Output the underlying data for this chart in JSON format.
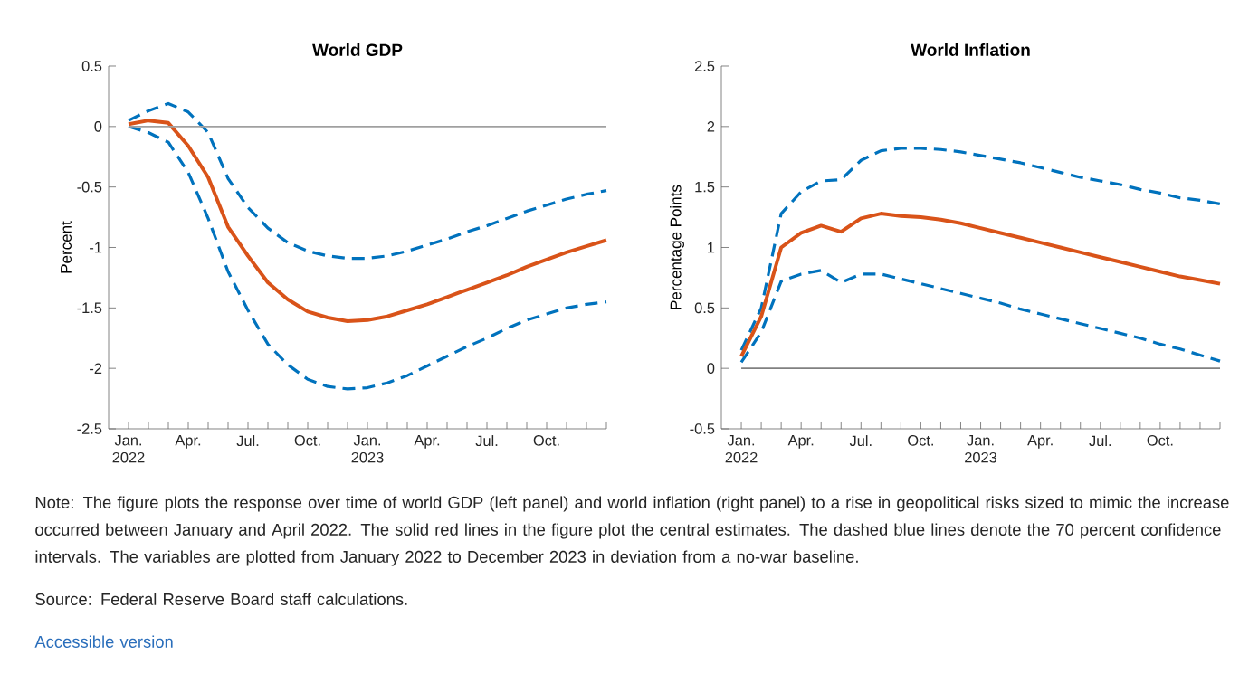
{
  "chart_data": [
    {
      "type": "line",
      "title": "World GDP",
      "ylabel": "Percent",
      "x": [
        "2022-01",
        "2022-02",
        "2022-03",
        "2022-04",
        "2022-05",
        "2022-06",
        "2022-07",
        "2022-08",
        "2022-09",
        "2022-10",
        "2022-11",
        "2022-12",
        "2023-01",
        "2023-02",
        "2023-03",
        "2023-04",
        "2023-05",
        "2023-06",
        "2023-07",
        "2023-08",
        "2023-09",
        "2023-10",
        "2023-11",
        "2023-12",
        "2024-01"
      ],
      "series": [
        {
          "color": "#0072bd",
          "line_style": "dashed",
          "values": [
            0.05,
            0.13,
            0.19,
            0.12,
            -0.05,
            -0.43,
            -0.67,
            -0.84,
            -0.96,
            -1.03,
            -1.07,
            -1.09,
            -1.09,
            -1.07,
            -1.03,
            -0.98,
            -0.93,
            -0.87,
            -0.82,
            -0.76,
            -0.7,
            -0.65,
            -0.6,
            -0.56,
            -0.53
          ]
        },
        {
          "color": "#0072bd",
          "line_style": "dashed",
          "values": [
            0.0,
            -0.05,
            -0.13,
            -0.38,
            -0.76,
            -1.2,
            -1.52,
            -1.8,
            -1.97,
            -2.09,
            -2.15,
            -2.17,
            -2.16,
            -2.12,
            -2.06,
            -1.98,
            -1.9,
            -1.82,
            -1.75,
            -1.67,
            -1.6,
            -1.55,
            -1.5,
            -1.47,
            -1.45
          ]
        },
        {
          "color": "#d95319",
          "line_style": "solid",
          "values": [
            0.02,
            0.05,
            0.03,
            -0.16,
            -0.42,
            -0.83,
            -1.07,
            -1.29,
            -1.43,
            -1.53,
            -1.58,
            -1.61,
            -1.6,
            -1.57,
            -1.52,
            -1.47,
            -1.41,
            -1.35,
            -1.29,
            -1.23,
            -1.16,
            -1.1,
            -1.04,
            -0.99,
            -0.94
          ]
        }
      ],
      "xlim": [
        "2021-12",
        "2024-01"
      ],
      "xticks": [
        {
          "value": "2022-01",
          "label": "Jan. 2022"
        },
        {
          "value": "2022-02",
          "label": null
        },
        {
          "value": "2022-03",
          "label": null
        },
        {
          "value": "2022-04",
          "label": "Apr."
        },
        {
          "value": "2022-05",
          "label": null
        },
        {
          "value": "2022-06",
          "label": null
        },
        {
          "value": "2022-07",
          "label": "Jul."
        },
        {
          "value": "2022-08",
          "label": null
        },
        {
          "value": "2022-09",
          "label": null
        },
        {
          "value": "2022-10",
          "label": "Oct."
        },
        {
          "value": "2022-11",
          "label": null
        },
        {
          "value": "2022-12",
          "label": null
        },
        {
          "value": "2023-01",
          "label": "Jan. 2023"
        },
        {
          "value": "2023-02",
          "label": null
        },
        {
          "value": "2023-03",
          "label": null
        },
        {
          "value": "2023-04",
          "label": "Apr."
        },
        {
          "value": "2023-05",
          "label": null
        },
        {
          "value": "2023-06",
          "label": null
        },
        {
          "value": "2023-07",
          "label": "Jul."
        },
        {
          "value": "2023-08",
          "label": null
        },
        {
          "value": "2023-09",
          "label": null
        },
        {
          "value": "2023-10",
          "label": "Oct."
        },
        {
          "value": "2023-11",
          "label": null
        },
        {
          "value": "2023-12",
          "label": null
        },
        {
          "value": "2024-01",
          "label": null
        }
      ],
      "ylim": [
        -2.5,
        0.5
      ],
      "yticks": [
        -2.5,
        -2,
        -1.5,
        -1,
        -0.5,
        0,
        0.5
      ],
      "ref_lines": [
        {
          "axis": "y",
          "value": 0,
          "color": "#a0a0a0"
        }
      ],
      "annotations": [
        "Note: The figure plots the response over time of world GDP (left panel) and world inflation (right panel) to a rise in geopolitical risks sized to mimic the increase occurred between January and April 2022. The solid red lines in the figure plot the central estimates. The dashed blue lines denote the 70 percent confidence intervals. The variables are plotted from January 2022 to December 2023 in deviation from a no-war baseline.",
        "Source: Federal Reserve Board staff calculations.",
        "Accessible version"
      ]
    },
    {
      "type": "line",
      "title": "World Inflation",
      "ylabel": "Percentage Points",
      "x": [
        "2022-01",
        "2022-02",
        "2022-03",
        "2022-04",
        "2022-05",
        "2022-06",
        "2022-07",
        "2022-08",
        "2022-09",
        "2022-10",
        "2022-11",
        "2022-12",
        "2023-01",
        "2023-02",
        "2023-03",
        "2023-04",
        "2023-05",
        "2023-06",
        "2023-07",
        "2023-08",
        "2023-09",
        "2023-10",
        "2023-11",
        "2023-12",
        "2024-01"
      ],
      "series": [
        {
          "color": "#0072bd",
          "line_style": "dashed",
          "values": [
            0.15,
            0.5,
            1.28,
            1.46,
            1.55,
            1.56,
            1.72,
            1.8,
            1.82,
            1.82,
            1.81,
            1.79,
            1.76,
            1.73,
            1.7,
            1.66,
            1.62,
            1.58,
            1.55,
            1.52,
            1.48,
            1.45,
            1.41,
            1.39,
            1.36
          ]
        },
        {
          "color": "#0072bd",
          "line_style": "dashed",
          "values": [
            0.05,
            0.3,
            0.72,
            0.78,
            0.81,
            0.71,
            0.78,
            0.78,
            0.74,
            0.7,
            0.66,
            0.62,
            0.58,
            0.54,
            0.49,
            0.45,
            0.41,
            0.37,
            0.33,
            0.29,
            0.25,
            0.2,
            0.16,
            0.11,
            0.06
          ]
        },
        {
          "color": "#d95319",
          "line_style": "solid",
          "values": [
            0.1,
            0.43,
            1.0,
            1.12,
            1.18,
            1.13,
            1.24,
            1.28,
            1.26,
            1.25,
            1.23,
            1.2,
            1.16,
            1.12,
            1.08,
            1.04,
            1.0,
            0.96,
            0.92,
            0.88,
            0.84,
            0.8,
            0.76,
            0.73,
            0.7
          ]
        }
      ],
      "xlim": [
        "2021-12",
        "2024-01"
      ],
      "xticks": [
        {
          "value": "2022-01",
          "label": "Jan. 2022"
        },
        {
          "value": "2022-02",
          "label": null
        },
        {
          "value": "2022-03",
          "label": null
        },
        {
          "value": "2022-04",
          "label": "Apr."
        },
        {
          "value": "2022-05",
          "label": null
        },
        {
          "value": "2022-06",
          "label": null
        },
        {
          "value": "2022-07",
          "label": "Jul."
        },
        {
          "value": "2022-08",
          "label": null
        },
        {
          "value": "2022-09",
          "label": null
        },
        {
          "value": "2022-10",
          "label": "Oct."
        },
        {
          "value": "2022-11",
          "label": null
        },
        {
          "value": "2022-12",
          "label": null
        },
        {
          "value": "2023-01",
          "label": "Jan. 2023"
        },
        {
          "value": "2023-02",
          "label": null
        },
        {
          "value": "2023-03",
          "label": null
        },
        {
          "value": "2023-04",
          "label": "Apr."
        },
        {
          "value": "2023-05",
          "label": null
        },
        {
          "value": "2023-06",
          "label": null
        },
        {
          "value": "2023-07",
          "label": "Jul."
        },
        {
          "value": "2023-08",
          "label": null
        },
        {
          "value": "2023-09",
          "label": null
        },
        {
          "value": "2023-10",
          "label": "Oct."
        },
        {
          "value": "2023-11",
          "label": null
        },
        {
          "value": "2023-12",
          "label": null
        },
        {
          "value": "2024-01",
          "label": null
        }
      ],
      "ylim": [
        -0.5,
        2.5
      ],
      "yticks": [
        -0.5,
        0,
        0.5,
        1,
        1.5,
        2,
        2.5
      ],
      "ref_lines": [
        {
          "axis": "y",
          "value": 0,
          "color": "#808080"
        }
      ]
    }
  ]
}
